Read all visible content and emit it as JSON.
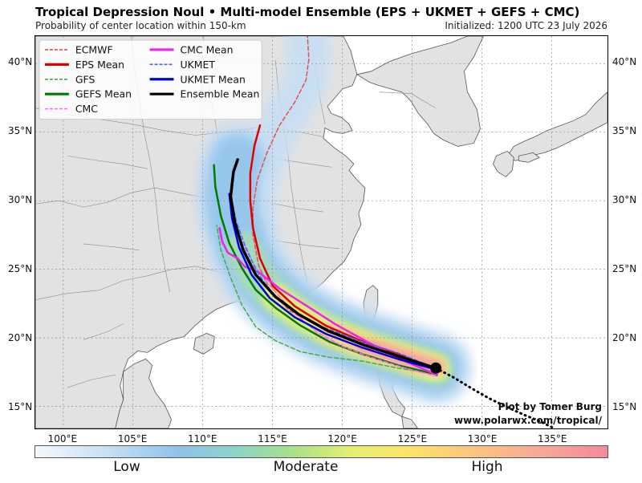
{
  "header": {
    "title": "Tropical Depression Noul • Multi-model Ensemble (EPS + UKMET + GEFS + CMC)",
    "subtitle": "Probability of center location within 150-km",
    "initialized": "Initialized: 1200 UTC 23 July 2026"
  },
  "map": {
    "lon_range": [
      98,
      139
    ],
    "lat_range": [
      13.4,
      42
    ],
    "lat_ticks": [
      "15°N",
      "20°N",
      "25°N",
      "30°N",
      "35°N",
      "40°N"
    ],
    "lon_ticks": [
      "100°E",
      "105°E",
      "110°E",
      "115°E",
      "120°E",
      "125°E",
      "130°E",
      "135°E"
    ],
    "colors": {
      "land": "#e2e2e2",
      "ocean": "#ffffff",
      "borders": "#8a8a8a",
      "coast": "#555555"
    }
  },
  "legend": {
    "items": [
      {
        "label": "ECMWF",
        "color": "#e05050",
        "style": "dashed"
      },
      {
        "label": "EPS Mean",
        "color": "#dd0000",
        "style": "solid"
      },
      {
        "label": "GFS",
        "color": "#4aa84a",
        "style": "dashed"
      },
      {
        "label": "GEFS Mean",
        "color": "#007a00",
        "style": "solid"
      },
      {
        "label": "CMC",
        "color": "#ff66ff",
        "style": "dashed"
      },
      {
        "label": "CMC Mean",
        "color": "#ee22ee",
        "style": "solid"
      },
      {
        "label": "UKMET",
        "color": "#4466ff",
        "style": "dashed"
      },
      {
        "label": "UKMET Mean",
        "color": "#0000dd",
        "style": "solid"
      },
      {
        "label": "Ensemble Mean",
        "color": "#000000",
        "style": "solid"
      }
    ]
  },
  "tracks": [
    {
      "name": "ECMWF",
      "color": "#e05050",
      "dash": true,
      "width": 1.5,
      "points": [
        [
          126.7,
          17.7
        ],
        [
          124,
          18.8
        ],
        [
          121,
          19.8
        ],
        [
          118.5,
          20.8
        ],
        [
          116.2,
          22
        ],
        [
          114.8,
          23.5
        ],
        [
          114,
          25.3
        ],
        [
          113.6,
          27.5
        ],
        [
          113.6,
          29.5
        ],
        [
          113.9,
          31.5
        ],
        [
          114.6,
          33.5
        ],
        [
          115.5,
          35.5
        ],
        [
          116.6,
          37.2
        ],
        [
          117.4,
          38.8
        ],
        [
          117.6,
          40.3
        ],
        [
          117.5,
          42
        ]
      ]
    },
    {
      "name": "EPS Mean",
      "color": "#dd0000",
      "dash": false,
      "width": 2.5,
      "points": [
        [
          126.7,
          17.7
        ],
        [
          124,
          18.8
        ],
        [
          121.3,
          19.8
        ],
        [
          118.8,
          20.9
        ],
        [
          116.6,
          22.3
        ],
        [
          115,
          23.8
        ],
        [
          114.1,
          25.8
        ],
        [
          113.6,
          28
        ],
        [
          113.4,
          30
        ],
        [
          113.4,
          32
        ],
        [
          113.7,
          34
        ],
        [
          114.1,
          35.5
        ]
      ]
    },
    {
      "name": "GFS",
      "color": "#4aa84a",
      "dash": true,
      "width": 1.5,
      "points": [
        [
          126.5,
          17.4
        ],
        [
          124,
          17.8
        ],
        [
          121.5,
          18.3
        ],
        [
          119,
          18.6
        ],
        [
          117,
          19
        ],
        [
          115.2,
          19.8
        ],
        [
          113.8,
          20.8
        ],
        [
          112.8,
          22.4
        ],
        [
          112,
          24.4
        ],
        [
          111.3,
          26.4
        ],
        [
          111,
          28.2
        ]
      ]
    },
    {
      "name": "GEFS Mean",
      "color": "#007a00",
      "dash": false,
      "width": 2.5,
      "points": [
        [
          126.5,
          17.4
        ],
        [
          124,
          18
        ],
        [
          121.5,
          18.8
        ],
        [
          119.1,
          19.7
        ],
        [
          117,
          20.9
        ],
        [
          115.2,
          22.2
        ],
        [
          113.8,
          23.5
        ],
        [
          112.8,
          25.1
        ],
        [
          111.9,
          26.9
        ],
        [
          111.3,
          28.9
        ],
        [
          110.9,
          31
        ],
        [
          110.8,
          32.6
        ]
      ]
    },
    {
      "name": "CMC",
      "color": "#ff66ff",
      "dash": true,
      "width": 1.5,
      "points": [
        [
          126.8,
          17.2
        ],
        [
          124.5,
          17.8
        ],
        [
          122,
          18.6
        ],
        [
          120,
          19.4
        ],
        [
          118.2,
          20.4
        ],
        [
          116.7,
          21.7
        ],
        [
          115.5,
          23
        ],
        [
          114.4,
          24.3
        ],
        [
          113.5,
          25.6
        ],
        [
          112.8,
          27
        ]
      ]
    },
    {
      "name": "CMC Mean",
      "color": "#ee22ee",
      "dash": false,
      "width": 2.5,
      "points": [
        [
          126.8,
          17.3
        ],
        [
          124.5,
          18.3
        ],
        [
          121.8,
          19.7
        ],
        [
          119.5,
          21
        ],
        [
          117.5,
          22.3
        ],
        [
          115.5,
          23.6
        ],
        [
          114,
          24.8
        ],
        [
          113,
          25.2
        ],
        [
          112.5,
          25.8
        ],
        [
          111.8,
          26.2
        ],
        [
          111.4,
          27
        ],
        [
          111.2,
          28
        ]
      ]
    },
    {
      "name": "UKMET",
      "color": "#4466ff",
      "dash": true,
      "width": 1.5,
      "points": [
        [
          126.7,
          17.8
        ],
        [
          124,
          18.9
        ],
        [
          121.2,
          19.8
        ],
        [
          118.6,
          20.8
        ],
        [
          116.4,
          22
        ],
        [
          114.8,
          23.4
        ],
        [
          113.8,
          25
        ],
        [
          113,
          26.8
        ],
        [
          112.4,
          28.5
        ],
        [
          112,
          30.5
        ]
      ]
    },
    {
      "name": "UKMET Mean",
      "color": "#0000dd",
      "dash": false,
      "width": 2.5,
      "points": [
        [
          126.7,
          17.7
        ],
        [
          124.2,
          18.4
        ],
        [
          121.4,
          19.3
        ],
        [
          118.8,
          20.3
        ],
        [
          116.6,
          21.5
        ],
        [
          114.8,
          22.9
        ],
        [
          113.5,
          24.6
        ],
        [
          112.6,
          26.6
        ],
        [
          112.1,
          28.7
        ],
        [
          111.9,
          30.5
        ]
      ]
    },
    {
      "name": "Ensemble Mean",
      "color": "#000000",
      "dash": false,
      "width": 3.5,
      "points": [
        [
          126.7,
          17.8
        ],
        [
          124.2,
          18.6
        ],
        [
          121.5,
          19.5
        ],
        [
          119,
          20.5
        ],
        [
          116.9,
          21.7
        ],
        [
          115.2,
          23
        ],
        [
          113.8,
          24.6
        ],
        [
          112.9,
          26.4
        ],
        [
          112.3,
          28.4
        ],
        [
          112,
          30.3
        ],
        [
          112.2,
          32.1
        ],
        [
          112.5,
          33
        ]
      ]
    }
  ],
  "past_track": [
    [
      126.7,
      17.8
    ],
    [
      128,
      17.1
    ],
    [
      129.3,
      16.3
    ],
    [
      130.5,
      15.6
    ],
    [
      131.7,
      15
    ],
    [
      133,
      14.4
    ],
    [
      134.2,
      13.9
    ],
    [
      135.2,
      13.4
    ]
  ],
  "current_position": [
    126.7,
    17.8
  ],
  "colorbar": {
    "low": "Low",
    "moderate": "Moderate",
    "high": "High"
  },
  "credits": {
    "line1": "Plot by Tomer Burg",
    "line2": "www.polarwx.com/tropical/"
  }
}
